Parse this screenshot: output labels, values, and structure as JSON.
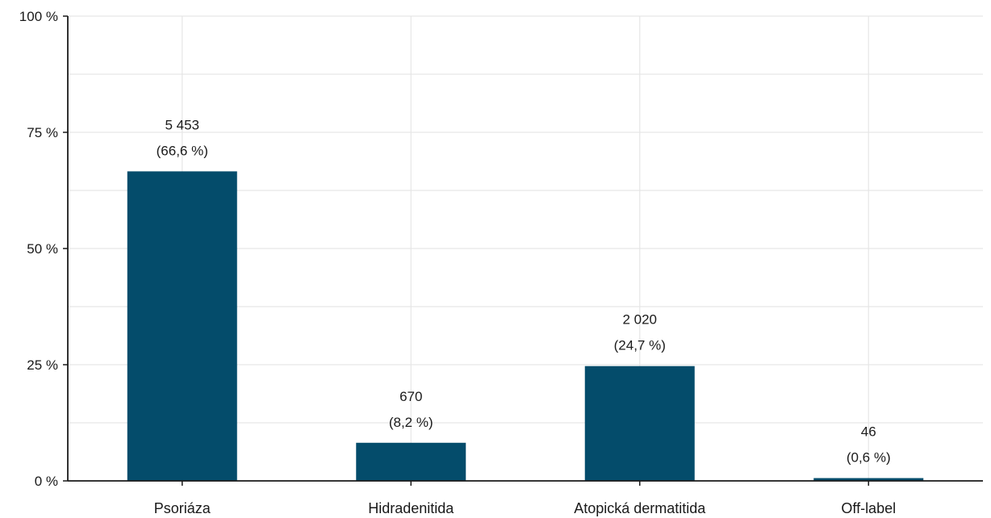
{
  "chart_data": {
    "type": "bar",
    "categories": [
      "Psoriáza",
      "Hidradenitida",
      "Atopická dermatitida",
      "Off-label"
    ],
    "values": [
      66.6,
      8.2,
      24.7,
      0.6
    ],
    "counts": [
      "5 453",
      "670",
      "2 020",
      "46"
    ],
    "percent_labels": [
      "(66,6 %)",
      "(8,2 %)",
      "(24,7 %)",
      "(0,6 %)"
    ],
    "y_ticks": [
      0,
      25,
      50,
      75,
      100
    ],
    "y_tick_labels": [
      "0 %",
      "25 %",
      "50 %",
      "75 %",
      "100 %"
    ],
    "ylim": [
      0,
      100
    ],
    "grid": true,
    "bar_color": "#044c6b",
    "grid_color": "#e6e6e6",
    "axis_color": "#1a1a1a"
  }
}
